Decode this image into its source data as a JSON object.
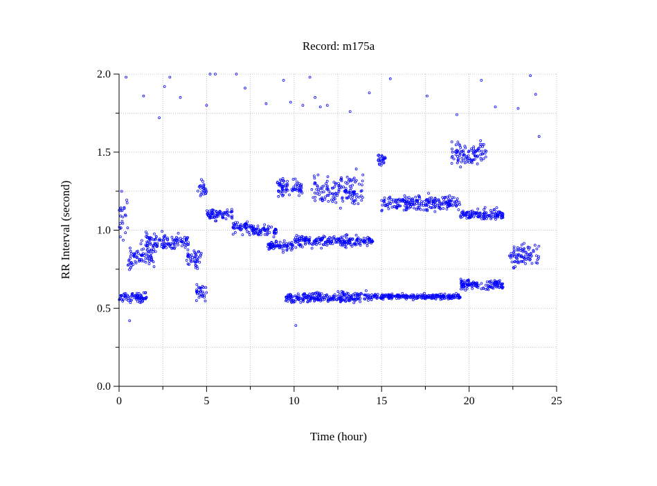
{
  "chart_data": {
    "type": "scatter",
    "title": "Record:  m175a",
    "xlabel": "Time (hour)",
    "ylabel": "RR Interval (second)",
    "xlim": [
      0,
      25
    ],
    "ylim": [
      0,
      2
    ],
    "xticks": [
      0,
      5,
      10,
      15,
      20,
      25
    ],
    "xtick_labels": [
      "0",
      "5",
      "10",
      "15",
      "20",
      "25"
    ],
    "yticks": [
      0,
      0.5,
      1,
      1.5,
      2
    ],
    "ytick_labels": [
      "0.0",
      "0.5",
      "1.0",
      "1.5",
      "2.0"
    ],
    "x_minor_step": 2.5,
    "y_minor_step": 0.25,
    "grid": true,
    "point_color": "#0000ff",
    "series": [
      {
        "x_range": [
          0,
          24
        ],
        "bands": [
          {
            "t": [
              0.0,
              0.5
            ],
            "y": [
              0.85,
              1.3
            ]
          },
          {
            "t": [
              0.0,
              1.6
            ],
            "y": [
              0.52,
              0.62
            ]
          },
          {
            "t": [
              0.5,
              2.0
            ],
            "y": [
              0.7,
              0.95
            ]
          },
          {
            "t": [
              1.5,
              4.0
            ],
            "y": [
              0.85,
              1.0
            ]
          },
          {
            "t": [
              3.8,
              4.7
            ],
            "y": [
              0.72,
              0.92
            ]
          },
          {
            "t": [
              4.4,
              5.0
            ],
            "y": [
              0.52,
              0.68
            ]
          },
          {
            "t": [
              4.5,
              5.0
            ],
            "y": [
              1.2,
              1.35
            ]
          },
          {
            "t": [
              5.0,
              6.5
            ],
            "y": [
              1.05,
              1.15
            ]
          },
          {
            "t": [
              6.5,
              7.5
            ],
            "y": [
              0.95,
              1.08
            ]
          },
          {
            "t": [
              7.5,
              9.0
            ],
            "y": [
              0.95,
              1.05
            ]
          },
          {
            "t": [
              8.5,
              10.0
            ],
            "y": [
              0.85,
              0.95
            ]
          },
          {
            "t": [
              9.0,
              10.5
            ],
            "y": [
              1.2,
              1.35
            ]
          },
          {
            "t": [
              9.5,
              14.5
            ],
            "y": [
              0.52,
              0.62
            ]
          },
          {
            "t": [
              10.0,
              11.5
            ],
            "y": [
              0.88,
              0.98
            ]
          },
          {
            "t": [
              11.0,
              14.0
            ],
            "y": [
              1.1,
              1.4
            ]
          },
          {
            "t": [
              11.5,
              14.5
            ],
            "y": [
              0.88,
              0.98
            ]
          },
          {
            "t": [
              14.5,
              19.5
            ],
            "y": [
              0.55,
              0.6
            ]
          },
          {
            "t": [
              14.8,
              15.3
            ],
            "y": [
              1.4,
              1.5
            ]
          },
          {
            "t": [
              15.0,
              19.5
            ],
            "y": [
              1.1,
              1.25
            ]
          },
          {
            "t": [
              19.0,
              21.0
            ],
            "y": [
              1.38,
              1.6
            ]
          },
          {
            "t": [
              19.5,
              22.0
            ],
            "y": [
              1.05,
              1.15
            ]
          },
          {
            "t": [
              19.5,
              22.0
            ],
            "y": [
              0.6,
              0.7
            ]
          },
          {
            "t": [
              22.3,
              24.0
            ],
            "y": [
              0.72,
              0.95
            ]
          }
        ],
        "outliers": [
          [
            0.4,
            1.98
          ],
          [
            0.6,
            0.42
          ],
          [
            1.4,
            1.86
          ],
          [
            2.3,
            1.72
          ],
          [
            2.6,
            1.92
          ],
          [
            2.9,
            1.98
          ],
          [
            3.5,
            1.85
          ],
          [
            5.0,
            1.8
          ],
          [
            5.2,
            2.0
          ],
          [
            5.5,
            2.0
          ],
          [
            6.7,
            2.0
          ],
          [
            7.2,
            1.91
          ],
          [
            8.4,
            1.81
          ],
          [
            9.4,
            1.96
          ],
          [
            9.8,
            1.82
          ],
          [
            10.1,
            0.39
          ],
          [
            10.5,
            1.8
          ],
          [
            10.9,
            1.98
          ],
          [
            11.2,
            1.85
          ],
          [
            11.5,
            1.79
          ],
          [
            11.9,
            1.8
          ],
          [
            13.2,
            1.76
          ],
          [
            14.3,
            1.88
          ],
          [
            15.5,
            1.97
          ],
          [
            17.6,
            1.86
          ],
          [
            19.3,
            1.74
          ],
          [
            20.7,
            1.96
          ],
          [
            21.5,
            1.79
          ],
          [
            22.8,
            1.78
          ],
          [
            23.5,
            1.99
          ],
          [
            23.8,
            1.87
          ],
          [
            24.0,
            1.6
          ]
        ]
      }
    ]
  }
}
